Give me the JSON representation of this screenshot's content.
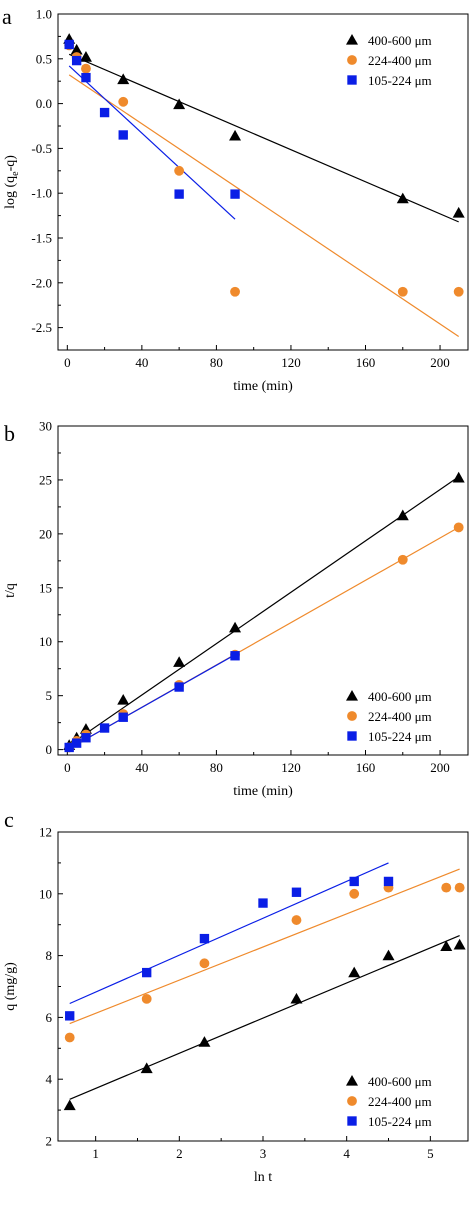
{
  "chart_data": [
    {
      "type": "scatter",
      "panel_label": "a",
      "xlabel": "time (min)",
      "ylabel": "log (q",
      "ylabel_sub": "e",
      "ylabel_tail": "-q)",
      "xlim": [
        -5,
        215
      ],
      "ylim": [
        -2.75,
        1.0
      ],
      "xticks": [
        0,
        40,
        80,
        120,
        160,
        200
      ],
      "xtick_labels": [
        "0",
        "40",
        "80",
        "120",
        "160",
        "200"
      ],
      "yticks": [
        1.0,
        0.5,
        0.0,
        -0.5,
        -1.0,
        -1.5,
        -2.0,
        -2.5
      ],
      "ytick_labels": [
        "1.0",
        "0.5",
        "0.0",
        "-0.5",
        "-1.0",
        "-1.5",
        "-2.0",
        "-2.5"
      ],
      "legend_position": "top-right",
      "series": [
        {
          "name": "400-600 μm",
          "marker": "triangle",
          "color": "#000000",
          "x": [
            1,
            5,
            10,
            30,
            60,
            90,
            180,
            210
          ],
          "y": [
            0.72,
            0.6,
            0.52,
            0.27,
            -0.01,
            -0.36,
            -1.06,
            -1.22
          ],
          "fit": {
            "x": [
              1,
              210
            ],
            "y": [
              0.55,
              -1.32
            ]
          }
        },
        {
          "name": "224-400 μm",
          "marker": "circle",
          "color": "#ef8a2c",
          "x": [
            1,
            5,
            10,
            30,
            60,
            90,
            180,
            210
          ],
          "y": [
            0.65,
            0.52,
            0.39,
            0.02,
            -0.75,
            -2.1,
            -2.1,
            -2.1
          ],
          "fit": {
            "x": [
              1,
              210
            ],
            "y": [
              0.32,
              -2.6
            ]
          }
        },
        {
          "name": "105-224 μm",
          "marker": "square",
          "color": "#0a1ee6",
          "x": [
            1,
            5,
            10,
            20,
            30,
            60,
            90
          ],
          "y": [
            0.66,
            0.48,
            0.29,
            -0.1,
            -0.35,
            -1.01,
            -1.01
          ],
          "fit": {
            "x": [
              1,
              90
            ],
            "y": [
              0.42,
              -1.29
            ]
          }
        }
      ]
    },
    {
      "type": "scatter",
      "panel_label": "b",
      "xlabel": "time (min)",
      "ylabel": "t/q",
      "xlim": [
        -5,
        215
      ],
      "ylim": [
        -0.5,
        30
      ],
      "xticks": [
        0,
        40,
        80,
        120,
        160,
        200
      ],
      "xtick_labels": [
        "0",
        "40",
        "80",
        "120",
        "160",
        "200"
      ],
      "yticks": [
        0,
        5,
        10,
        15,
        20,
        25,
        30
      ],
      "ytick_labels": [
        "0",
        "5",
        "10",
        "15",
        "20",
        "25",
        "30"
      ],
      "legend_position": "bottom-right",
      "series": [
        {
          "name": "400-600 μm",
          "marker": "triangle",
          "color": "#000000",
          "x": [
            1,
            5,
            10,
            30,
            60,
            90,
            180,
            210
          ],
          "y": [
            0.4,
            1.1,
            1.9,
            4.6,
            8.1,
            11.3,
            21.7,
            25.2
          ],
          "fit": {
            "x": [
              0,
              210
            ],
            "y": [
              0.3,
              25.3
            ]
          }
        },
        {
          "name": "224-400 μm",
          "marker": "circle",
          "color": "#ef8a2c",
          "x": [
            1,
            5,
            10,
            30,
            60,
            90,
            180,
            210
          ],
          "y": [
            0.2,
            0.8,
            1.4,
            3.3,
            6.0,
            8.8,
            17.6,
            20.6
          ],
          "fit": {
            "x": [
              0,
              210
            ],
            "y": [
              0.0,
              20.6
            ]
          }
        },
        {
          "name": "105-224 μm",
          "marker": "square",
          "color": "#0a1ee6",
          "x": [
            1,
            5,
            10,
            20,
            30,
            60,
            90
          ],
          "y": [
            0.2,
            0.6,
            1.1,
            2.0,
            3.0,
            5.8,
            8.7
          ],
          "fit": {
            "x": [
              0,
              90
            ],
            "y": [
              0.0,
              8.8
            ]
          }
        }
      ]
    },
    {
      "type": "scatter",
      "panel_label": "c",
      "xlabel": "ln t",
      "ylabel": "q (mg/g)",
      "xlim": [
        0.55,
        5.45
      ],
      "ylim": [
        2,
        12
      ],
      "xticks": [
        1,
        2,
        3,
        4,
        5
      ],
      "xtick_labels": [
        "1",
        "2",
        "3",
        "4",
        "5"
      ],
      "yticks": [
        2,
        4,
        6,
        8,
        10,
        12
      ],
      "ytick_labels": [
        "2",
        "4",
        "6",
        "8",
        "10",
        "12"
      ],
      "legend_position": "bottom-right",
      "series": [
        {
          "name": "400-600 μm",
          "marker": "triangle",
          "color": "#000000",
          "x": [
            0.69,
            1.61,
            2.3,
            3.4,
            4.09,
            4.5,
            5.19,
            5.35
          ],
          "y": [
            3.15,
            4.35,
            5.2,
            6.6,
            7.45,
            8.0,
            8.3,
            8.35
          ],
          "fit": {
            "x": [
              0.69,
              5.35
            ],
            "y": [
              3.35,
              8.65
            ]
          }
        },
        {
          "name": "224-400 μm",
          "marker": "circle",
          "color": "#ef8a2c",
          "x": [
            0.69,
            1.61,
            2.3,
            3.4,
            4.09,
            4.5,
            5.19,
            5.35
          ],
          "y": [
            5.35,
            6.6,
            7.75,
            9.15,
            10.0,
            10.2,
            10.2,
            10.2
          ],
          "fit": {
            "x": [
              0.69,
              5.35
            ],
            "y": [
              5.8,
              10.8
            ]
          }
        },
        {
          "name": "105-224 μm",
          "marker": "square",
          "color": "#0a1ee6",
          "x": [
            0.69,
            1.61,
            2.3,
            3.0,
            3.4,
            4.09,
            4.5
          ],
          "y": [
            6.05,
            7.45,
            8.55,
            9.7,
            10.05,
            10.4,
            10.4
          ],
          "fit": {
            "x": [
              0.69,
              4.5
            ],
            "y": [
              6.45,
              11.0
            ]
          }
        }
      ]
    }
  ]
}
